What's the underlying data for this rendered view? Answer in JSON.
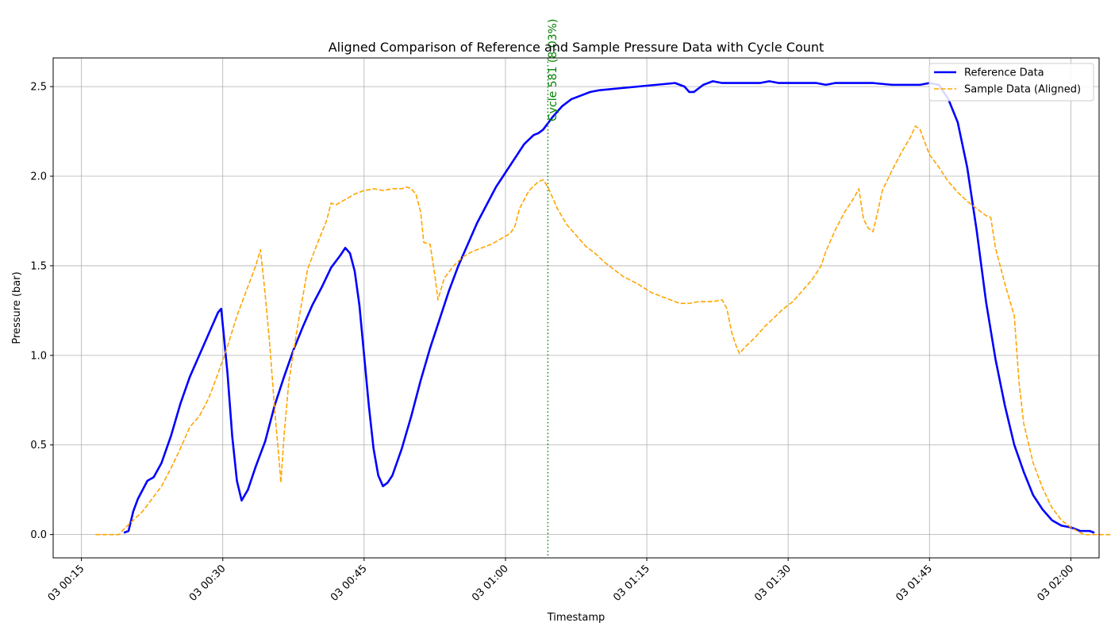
{
  "chart_data": {
    "type": "line",
    "title": "Aligned Comparison of Reference and Sample Pressure Data with Cycle Count",
    "xlabel": "Timestamp",
    "ylabel": "Pressure (bar)",
    "x_unit": "time (HH:MM on day 03)",
    "xlim": [
      "00:12",
      "02:03"
    ],
    "ylim": [
      -0.13,
      2.66
    ],
    "x_ticks": [
      {
        "time": "00:15",
        "label": "03 00:15"
      },
      {
        "time": "00:30",
        "label": "03 00:30"
      },
      {
        "time": "00:45",
        "label": "03 00:45"
      },
      {
        "time": "01:00",
        "label": "03 01:00"
      },
      {
        "time": "01:15",
        "label": "03 01:15"
      },
      {
        "time": "01:30",
        "label": "03 01:30"
      },
      {
        "time": "01:45",
        "label": "03 01:45"
      },
      {
        "time": "02:00",
        "label": "03 02:00"
      }
    ],
    "y_ticks": [
      {
        "value": 0.0,
        "label": "0.0"
      },
      {
        "value": 0.5,
        "label": "0.5"
      },
      {
        "value": 1.0,
        "label": "1.0"
      },
      {
        "value": 1.5,
        "label": "1.5"
      },
      {
        "value": 2.0,
        "label": "2.0"
      },
      {
        "value": 2.5,
        "label": "2.5"
      }
    ],
    "grid": true,
    "legend_position": "top-right",
    "series": [
      {
        "name": "Reference Data",
        "color": "#0000ff",
        "style": "solid",
        "points": [
          [
            "00:19:30",
            0.01
          ],
          [
            "00:20:00",
            0.02
          ],
          [
            "00:20:30",
            0.13
          ],
          [
            "00:21:00",
            0.2
          ],
          [
            "00:22:00",
            0.3
          ],
          [
            "00:22:40",
            0.32
          ],
          [
            "00:23:30",
            0.4
          ],
          [
            "00:24:30",
            0.55
          ],
          [
            "00:25:30",
            0.73
          ],
          [
            "00:26:30",
            0.88
          ],
          [
            "00:27:30",
            1.0
          ],
          [
            "00:28:30",
            1.12
          ],
          [
            "00:29:30",
            1.24
          ],
          [
            "00:29:50",
            1.26
          ],
          [
            "00:30:30",
            0.9
          ],
          [
            "00:31:00",
            0.55
          ],
          [
            "00:31:30",
            0.3
          ],
          [
            "00:32:00",
            0.19
          ],
          [
            "00:32:40",
            0.25
          ],
          [
            "00:33:30",
            0.38
          ],
          [
            "00:34:30",
            0.52
          ],
          [
            "00:35:30",
            0.72
          ],
          [
            "00:36:30",
            0.88
          ],
          [
            "00:37:30",
            1.03
          ],
          [
            "00:38:30",
            1.16
          ],
          [
            "00:39:30",
            1.28
          ],
          [
            "00:40:30",
            1.38
          ],
          [
            "00:41:30",
            1.49
          ],
          [
            "00:42:30",
            1.56
          ],
          [
            "00:43:00",
            1.6
          ],
          [
            "00:43:30",
            1.57
          ],
          [
            "00:44:00",
            1.47
          ],
          [
            "00:44:30",
            1.28
          ],
          [
            "00:45:00",
            1.0
          ],
          [
            "00:45:30",
            0.72
          ],
          [
            "00:46:00",
            0.48
          ],
          [
            "00:46:30",
            0.33
          ],
          [
            "00:47:00",
            0.27
          ],
          [
            "00:47:30",
            0.29
          ],
          [
            "00:48:00",
            0.33
          ],
          [
            "00:49:00",
            0.48
          ],
          [
            "00:50:00",
            0.66
          ],
          [
            "00:51:00",
            0.86
          ],
          [
            "00:52:00",
            1.04
          ],
          [
            "00:53:00",
            1.2
          ],
          [
            "00:54:00",
            1.36
          ],
          [
            "00:55:00",
            1.5
          ],
          [
            "00:56:00",
            1.62
          ],
          [
            "00:57:00",
            1.74
          ],
          [
            "00:58:00",
            1.84
          ],
          [
            "00:59:00",
            1.94
          ],
          [
            "01:00:00",
            2.02
          ],
          [
            "01:01:00",
            2.1
          ],
          [
            "01:02:00",
            2.18
          ],
          [
            "01:03:00",
            2.23
          ],
          [
            "01:03:30",
            2.24
          ],
          [
            "01:04:00",
            2.26
          ],
          [
            "01:05:00",
            2.33
          ],
          [
            "01:06:00",
            2.39
          ],
          [
            "01:07:00",
            2.43
          ],
          [
            "01:08:00",
            2.45
          ],
          [
            "01:09:00",
            2.47
          ],
          [
            "01:10:00",
            2.48
          ],
          [
            "01:12:00",
            2.49
          ],
          [
            "01:14:00",
            2.5
          ],
          [
            "01:16:00",
            2.51
          ],
          [
            "01:18:00",
            2.52
          ],
          [
            "01:19:00",
            2.5
          ],
          [
            "01:19:30",
            2.47
          ],
          [
            "01:20:00",
            2.47
          ],
          [
            "01:21:00",
            2.51
          ],
          [
            "01:22:00",
            2.53
          ],
          [
            "01:23:00",
            2.52
          ],
          [
            "01:27:00",
            2.52
          ],
          [
            "01:28:00",
            2.53
          ],
          [
            "01:29:00",
            2.52
          ],
          [
            "01:33:00",
            2.52
          ],
          [
            "01:34:00",
            2.51
          ],
          [
            "01:35:00",
            2.52
          ],
          [
            "01:39:00",
            2.52
          ],
          [
            "01:41:00",
            2.51
          ],
          [
            "01:44:00",
            2.51
          ],
          [
            "01:45:00",
            2.52
          ],
          [
            "01:46:00",
            2.51
          ],
          [
            "01:47:00",
            2.43
          ],
          [
            "01:48:00",
            2.3
          ],
          [
            "01:49:00",
            2.05
          ],
          [
            "01:50:00",
            1.7
          ],
          [
            "01:51:00",
            1.3
          ],
          [
            "01:52:00",
            0.98
          ],
          [
            "01:53:00",
            0.72
          ],
          [
            "01:54:00",
            0.5
          ],
          [
            "01:55:00",
            0.35
          ],
          [
            "01:56:00",
            0.22
          ],
          [
            "01:57:00",
            0.14
          ],
          [
            "01:58:00",
            0.08
          ],
          [
            "01:59:00",
            0.05
          ],
          [
            "02:00:00",
            0.04
          ],
          [
            "02:01:00",
            0.02
          ],
          [
            "02:02:00",
            0.02
          ],
          [
            "02:02:30",
            0.01
          ]
        ]
      },
      {
        "name": "Sample Data (Aligned)",
        "color": "#ffa500",
        "style": "dashed",
        "points": [
          [
            "00:16:30",
            0.0
          ],
          [
            "00:19:00",
            0.0
          ],
          [
            "00:19:30",
            0.03
          ],
          [
            "00:20:30",
            0.08
          ],
          [
            "00:21:30",
            0.13
          ],
          [
            "00:22:30",
            0.2
          ],
          [
            "00:23:30",
            0.27
          ],
          [
            "00:24:30",
            0.37
          ],
          [
            "00:25:30",
            0.48
          ],
          [
            "00:26:30",
            0.6
          ],
          [
            "00:27:30",
            0.66
          ],
          [
            "00:28:30",
            0.76
          ],
          [
            "00:29:30",
            0.9
          ],
          [
            "00:30:30",
            1.05
          ],
          [
            "00:31:30",
            1.22
          ],
          [
            "00:32:30",
            1.36
          ],
          [
            "00:33:30",
            1.5
          ],
          [
            "00:34:00",
            1.59
          ],
          [
            "00:34:30",
            1.34
          ],
          [
            "00:35:00",
            1.05
          ],
          [
            "00:35:30",
            0.7
          ],
          [
            "00:36:00",
            0.4
          ],
          [
            "00:36:10",
            0.29
          ],
          [
            "00:36:30",
            0.55
          ],
          [
            "00:37:00",
            0.85
          ],
          [
            "00:37:30",
            1.02
          ],
          [
            "00:38:00",
            1.18
          ],
          [
            "00:39:00",
            1.48
          ],
          [
            "00:40:00",
            1.62
          ],
          [
            "00:41:00",
            1.75
          ],
          [
            "00:41:30",
            1.85
          ],
          [
            "00:42:00",
            1.84
          ],
          [
            "00:43:00",
            1.87
          ],
          [
            "00:44:00",
            1.9
          ],
          [
            "00:45:00",
            1.92
          ],
          [
            "00:46:00",
            1.93
          ],
          [
            "00:47:00",
            1.92
          ],
          [
            "00:48:00",
            1.93
          ],
          [
            "00:49:00",
            1.93
          ],
          [
            "00:49:30",
            1.94
          ],
          [
            "00:50:00",
            1.93
          ],
          [
            "00:50:30",
            1.9
          ],
          [
            "00:51:00",
            1.8
          ],
          [
            "00:51:20",
            1.63
          ],
          [
            "00:52:00",
            1.62
          ],
          [
            "00:52:30",
            1.45
          ],
          [
            "00:52:50",
            1.31
          ],
          [
            "00:53:30",
            1.43
          ],
          [
            "00:54:30",
            1.5
          ],
          [
            "00:55:30",
            1.55
          ],
          [
            "00:56:30",
            1.58
          ],
          [
            "00:57:30",
            1.6
          ],
          [
            "00:58:30",
            1.62
          ],
          [
            "00:59:30",
            1.65
          ],
          [
            "01:00:30",
            1.68
          ],
          [
            "01:01:00",
            1.72
          ],
          [
            "01:01:30",
            1.82
          ],
          [
            "01:02:30",
            1.92
          ],
          [
            "01:03:30",
            1.97
          ],
          [
            "01:04:00",
            1.98
          ],
          [
            "01:04:30",
            1.94
          ],
          [
            "01:05:30",
            1.82
          ],
          [
            "01:06:30",
            1.73
          ],
          [
            "01:07:30",
            1.67
          ],
          [
            "01:08:30",
            1.61
          ],
          [
            "01:09:30",
            1.57
          ],
          [
            "01:10:30",
            1.52
          ],
          [
            "01:11:30",
            1.48
          ],
          [
            "01:12:30",
            1.44
          ],
          [
            "01:14:00",
            1.4
          ],
          [
            "01:15:30",
            1.35
          ],
          [
            "01:17:00",
            1.32
          ],
          [
            "01:18:30",
            1.29
          ],
          [
            "01:19:30",
            1.29
          ],
          [
            "01:20:30",
            1.3
          ],
          [
            "01:22:00",
            1.3
          ],
          [
            "01:23:00",
            1.31
          ],
          [
            "01:23:30",
            1.26
          ],
          [
            "01:24:00",
            1.13
          ],
          [
            "01:24:30",
            1.05
          ],
          [
            "01:24:50",
            1.01
          ],
          [
            "01:25:30",
            1.05
          ],
          [
            "01:26:30",
            1.1
          ],
          [
            "01:27:30",
            1.16
          ],
          [
            "01:28:30",
            1.21
          ],
          [
            "01:29:30",
            1.26
          ],
          [
            "01:30:30",
            1.3
          ],
          [
            "01:31:30",
            1.36
          ],
          [
            "01:32:30",
            1.42
          ],
          [
            "01:33:30",
            1.5
          ],
          [
            "01:34:00",
            1.58
          ],
          [
            "01:35:00",
            1.7
          ],
          [
            "01:36:00",
            1.8
          ],
          [
            "01:37:00",
            1.88
          ],
          [
            "01:37:30",
            1.93
          ],
          [
            "01:38:00",
            1.76
          ],
          [
            "01:38:30",
            1.71
          ],
          [
            "01:39:00",
            1.69
          ],
          [
            "01:39:30",
            1.8
          ],
          [
            "01:40:00",
            1.92
          ],
          [
            "01:41:00",
            2.03
          ],
          [
            "01:42:00",
            2.13
          ],
          [
            "01:43:00",
            2.22
          ],
          [
            "01:43:30",
            2.28
          ],
          [
            "01:44:00",
            2.26
          ],
          [
            "01:45:00",
            2.12
          ],
          [
            "01:46:00",
            2.05
          ],
          [
            "01:47:00",
            1.97
          ],
          [
            "01:48:00",
            1.91
          ],
          [
            "01:49:00",
            1.86
          ],
          [
            "01:50:00",
            1.82
          ],
          [
            "01:51:00",
            1.78
          ],
          [
            "01:51:30",
            1.77
          ],
          [
            "01:52:00",
            1.6
          ],
          [
            "01:53:00",
            1.4
          ],
          [
            "01:54:00",
            1.22
          ],
          [
            "01:54:30",
            0.85
          ],
          [
            "01:55:00",
            0.62
          ],
          [
            "01:56:00",
            0.4
          ],
          [
            "01:57:00",
            0.26
          ],
          [
            "01:58:00",
            0.15
          ],
          [
            "01:59:00",
            0.08
          ],
          [
            "02:00:00",
            0.04
          ],
          [
            "02:01:00",
            0.01
          ],
          [
            "02:01:30",
            0.0
          ],
          [
            "02:15:00",
            0.0
          ]
        ]
      }
    ],
    "annotations": [
      {
        "type": "vline",
        "time": "01:04:30",
        "color": "green",
        "style": "dotted",
        "label": "Cycle 581 (8.03%)"
      }
    ]
  }
}
